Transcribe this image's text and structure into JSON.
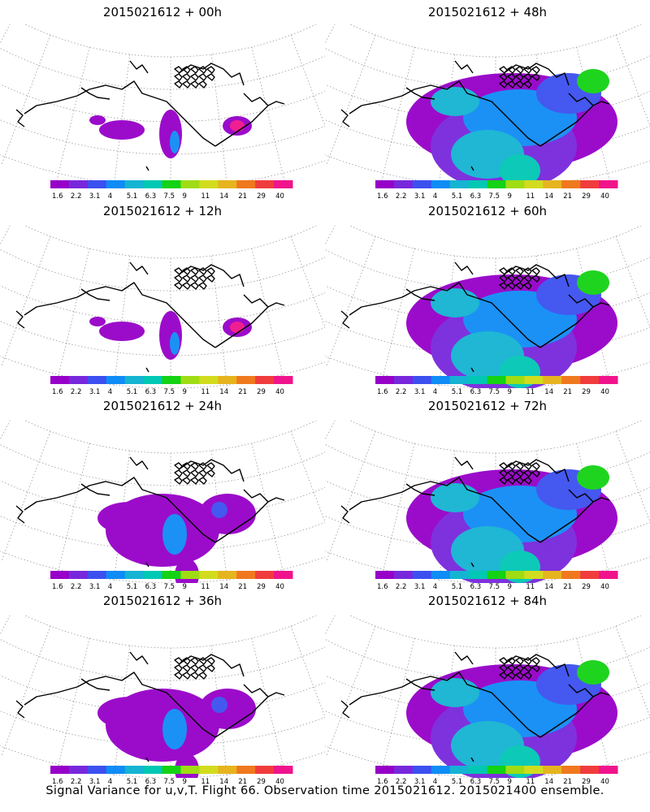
{
  "panels": [
    {
      "title": "2015021612 + 00h",
      "lead_hours": 0,
      "coverage": "low"
    },
    {
      "title": "2015021612 + 48h",
      "lead_hours": 48,
      "coverage": "high"
    },
    {
      "title": "2015021612 + 12h",
      "lead_hours": 12,
      "coverage": "low"
    },
    {
      "title": "2015021612 + 60h",
      "lead_hours": 60,
      "coverage": "high"
    },
    {
      "title": "2015021612 + 24h",
      "lead_hours": 24,
      "coverage": "medium"
    },
    {
      "title": "2015021612 + 72h",
      "lead_hours": 72,
      "coverage": "high"
    },
    {
      "title": "2015021612 + 36h",
      "lead_hours": 36,
      "coverage": "medium"
    },
    {
      "title": "2015021612 + 84h",
      "lead_hours": 84,
      "coverage": "high"
    }
  ],
  "colorbar": {
    "labels": [
      "1.6",
      "2.2",
      "3.1",
      "4",
      "5.1",
      "6.3",
      "7.5",
      "9",
      "11",
      "14",
      "21",
      "29",
      "40"
    ],
    "colors": [
      "#9600c8",
      "#7828dc",
      "#3c50f0",
      "#0f8cf5",
      "#14b4d2",
      "#00c8b4",
      "#14d214",
      "#a0dc14",
      "#d2dc1e",
      "#e6b41e",
      "#f0781e",
      "#f03c3c",
      "#f0148c"
    ]
  },
  "caption": "Signal Variance for u,v,T. Flight 66. Observation time 2015021612. 2015021400 ensemble."
}
